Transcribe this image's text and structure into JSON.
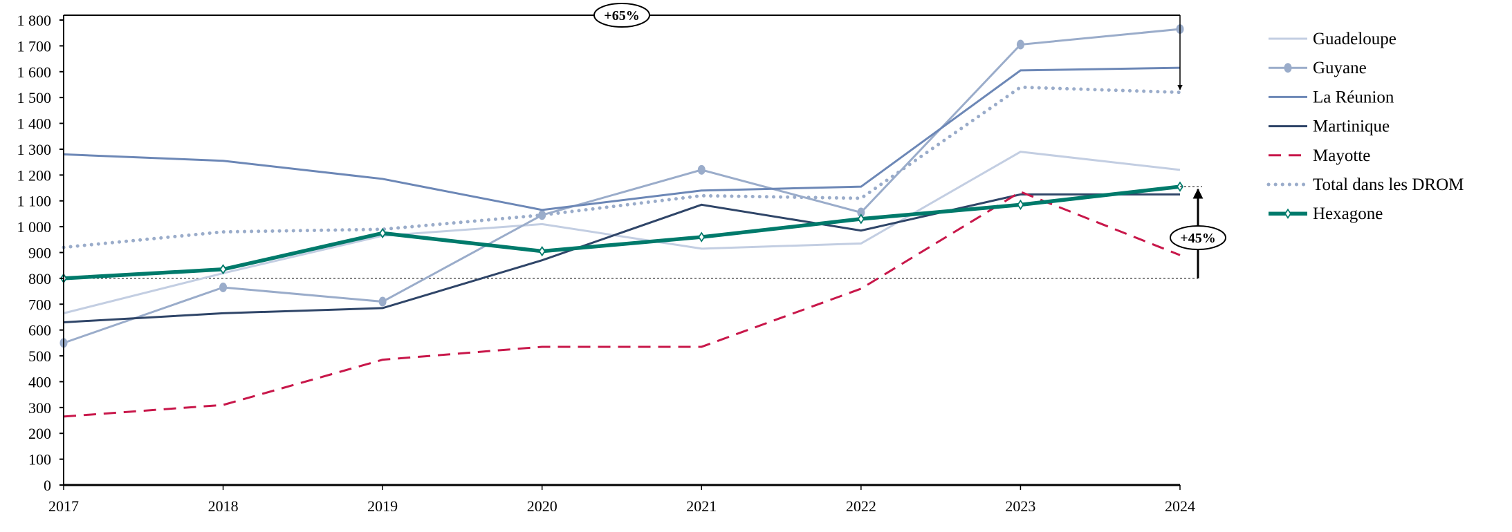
{
  "chart_data": {
    "type": "line",
    "title": "",
    "xlabel": "",
    "ylabel": "",
    "x": [
      "2017",
      "2018",
      "2019",
      "2020",
      "2021",
      "2022",
      "2023",
      "2024"
    ],
    "ylim": [
      0,
      1800
    ],
    "yticks": [
      "0",
      "100",
      "200",
      "300",
      "400",
      "500",
      "600",
      "700",
      "800",
      "900",
      "1 000",
      "1 100",
      "1 200",
      "1 300",
      "1 400",
      "1 500",
      "1 600",
      "1 700",
      "1 800"
    ],
    "grid": false,
    "legend_position": "right",
    "series": [
      {
        "name": "Guadeloupe",
        "color": "#c3cee2",
        "style": "solid",
        "marker": "none",
        "values": [
          665,
          820,
          965,
          1010,
          915,
          935,
          1290,
          1220
        ]
      },
      {
        "name": "Guyane",
        "color": "#9aacca",
        "style": "solid",
        "marker": "circle",
        "values": [
          550,
          765,
          710,
          1045,
          1220,
          1055,
          1705,
          1765
        ]
      },
      {
        "name": "La Réunion",
        "color": "#6c87b6",
        "style": "solid",
        "marker": "none",
        "values": [
          1280,
          1255,
          1185,
          1065,
          1140,
          1155,
          1605,
          1615
        ]
      },
      {
        "name": "Martinique",
        "color": "#2f4568",
        "style": "solid",
        "marker": "none",
        "values": [
          630,
          665,
          685,
          870,
          1085,
          985,
          1125,
          1125
        ]
      },
      {
        "name": "Mayotte",
        "color": "#c8174a",
        "style": "dashed",
        "marker": "none",
        "values": [
          265,
          310,
          485,
          535,
          535,
          760,
          1135,
          890
        ]
      },
      {
        "name": "Total dans les DROM",
        "color": "#9aacca",
        "style": "dotted",
        "marker": "none",
        "values": [
          920,
          980,
          990,
          1045,
          1120,
          1110,
          1540,
          1520
        ]
      },
      {
        "name": "Hexagone",
        "color": "#007a6b",
        "style": "thick",
        "marker": "diamond",
        "values": [
          800,
          835,
          975,
          905,
          960,
          1030,
          1085,
          1155
        ]
      }
    ],
    "reference_line": 800,
    "annotations": [
      {
        "label": "+65%",
        "from_value": 800,
        "to_value": 1520,
        "series": "Total dans les DROM"
      },
      {
        "label": "+45%",
        "from_value": 800,
        "to_value": 1155,
        "series": "Hexagone"
      }
    ]
  }
}
